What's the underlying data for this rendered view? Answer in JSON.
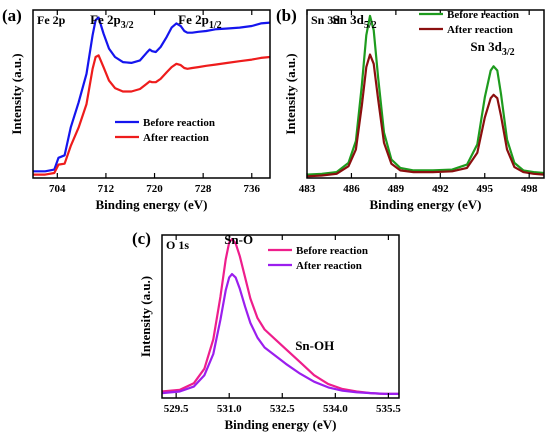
{
  "chart_data": [
    {
      "type": "line",
      "panel_tag": "(a)",
      "core_label": "Fe 2p",
      "peak_labels": [
        {
          "main": "Fe 2p",
          "sub": "3/2",
          "x": 711
        },
        {
          "main": "Fe 2p",
          "sub": "1/2",
          "x": 724.5
        }
      ],
      "xlabel": "Binding energy (eV)",
      "ylabel": "Intensity (a.u.)",
      "xlim": [
        700,
        739
      ],
      "xticks": [
        704,
        712,
        720,
        728,
        736
      ],
      "ylim": [
        0,
        1
      ],
      "legend_position": "lower-right",
      "series": [
        {
          "name": "Before reaction",
          "color": "#1515ee",
          "x": [
            700,
            702,
            703.5,
            704.2,
            705.2,
            706.2,
            707.5,
            708.8,
            709.8,
            710.3,
            710.8,
            711.6,
            712.5,
            713.5,
            714.8,
            716.2,
            717.6,
            718.7,
            719.2,
            719.6,
            720.2,
            721,
            722,
            722.8,
            723.6,
            724.3,
            724.9,
            725.4,
            726.2,
            727.2,
            728.5,
            730,
            732,
            734,
            736,
            737.5,
            739
          ],
          "y": [
            0.04,
            0.04,
            0.05,
            0.12,
            0.135,
            0.3,
            0.45,
            0.62,
            0.85,
            0.94,
            0.955,
            0.86,
            0.77,
            0.72,
            0.69,
            0.685,
            0.7,
            0.745,
            0.765,
            0.755,
            0.75,
            0.78,
            0.84,
            0.895,
            0.92,
            0.905,
            0.875,
            0.865,
            0.865,
            0.87,
            0.875,
            0.885,
            0.89,
            0.895,
            0.905,
            0.92,
            0.925
          ]
        },
        {
          "name": "After reaction",
          "color": "#ee1c1c",
          "x": [
            700,
            702,
            703.5,
            704.2,
            705.2,
            706.2,
            707.5,
            708.8,
            709.8,
            710.3,
            710.8,
            711.6,
            712.5,
            713.5,
            714.8,
            716.2,
            717.6,
            718.7,
            719.2,
            719.6,
            720.2,
            721,
            722,
            722.8,
            723.6,
            724.3,
            724.9,
            725.4,
            726.2,
            727.2,
            728.5,
            730,
            732,
            734,
            736,
            737.5,
            739
          ],
          "y": [
            0.02,
            0.02,
            0.03,
            0.08,
            0.085,
            0.19,
            0.3,
            0.44,
            0.65,
            0.72,
            0.73,
            0.66,
            0.58,
            0.535,
            0.515,
            0.515,
            0.53,
            0.56,
            0.575,
            0.57,
            0.57,
            0.59,
            0.63,
            0.66,
            0.68,
            0.672,
            0.655,
            0.65,
            0.655,
            0.66,
            0.668,
            0.675,
            0.685,
            0.695,
            0.705,
            0.715,
            0.72
          ]
        }
      ]
    },
    {
      "type": "line",
      "panel_tag": "(b)",
      "core_label": "Sn 3d",
      "peak_labels": [
        {
          "main": "Sn 3d",
          "sub": "5/2",
          "x": 488.1
        },
        {
          "main": "Sn 3d",
          "sub": "3/2",
          "x": 496.2
        }
      ],
      "xlabel": "Binding energy (eV)",
      "ylabel": "Intensity (a.u.)",
      "xlim": [
        483,
        499
      ],
      "xticks": [
        483,
        486,
        489,
        492,
        495,
        498
      ],
      "ylim": [
        0,
        1
      ],
      "legend_position": "top-right",
      "series": [
        {
          "name": "Before reaction",
          "color": "#1e9b1e",
          "x": [
            483,
            484,
            485,
            485.8,
            486.3,
            486.7,
            487.0,
            487.25,
            487.5,
            487.8,
            488.2,
            488.7,
            489.3,
            490.2,
            491.5,
            492.8,
            493.8,
            494.5,
            495.0,
            495.4,
            495.6,
            495.85,
            496.1,
            496.5,
            497.0,
            497.6,
            498.3,
            499
          ],
          "y": [
            0.02,
            0.025,
            0.035,
            0.09,
            0.22,
            0.55,
            0.85,
            0.965,
            0.88,
            0.6,
            0.27,
            0.11,
            0.06,
            0.045,
            0.045,
            0.05,
            0.08,
            0.2,
            0.48,
            0.64,
            0.665,
            0.64,
            0.5,
            0.23,
            0.09,
            0.045,
            0.035,
            0.03
          ]
        },
        {
          "name": "After reaction",
          "color": "#8b0f0f",
          "x": [
            483,
            484,
            485,
            485.8,
            486.3,
            486.7,
            487.0,
            487.25,
            487.5,
            487.8,
            488.2,
            488.7,
            489.3,
            490.2,
            491.5,
            492.8,
            493.8,
            494.5,
            495.0,
            495.4,
            495.6,
            495.85,
            496.1,
            496.5,
            497.0,
            497.6,
            498.3,
            499
          ],
          "y": [
            0.01,
            0.015,
            0.025,
            0.07,
            0.17,
            0.43,
            0.66,
            0.735,
            0.68,
            0.47,
            0.21,
            0.085,
            0.045,
            0.035,
            0.035,
            0.04,
            0.06,
            0.15,
            0.36,
            0.475,
            0.495,
            0.475,
            0.37,
            0.17,
            0.065,
            0.035,
            0.025,
            0.02
          ]
        }
      ]
    },
    {
      "type": "line",
      "panel_tag": "(c)",
      "core_label": "O 1s",
      "peak_labels": [
        {
          "main": "Sn-O",
          "sub": "",
          "x": 531.55
        },
        {
          "main": "Sn-OH",
          "sub": "",
          "x": 533.05
        }
      ],
      "xlabel": "Binding energy (eV)",
      "ylabel": "Intensity (a.u.)",
      "xlim": [
        529.1,
        535.8
      ],
      "xticks": [
        529.5,
        531.0,
        532.5,
        534.0,
        535.5
      ],
      "ylim": [
        0,
        1
      ],
      "legend_position": "top-right",
      "series": [
        {
          "name": "Before reaction",
          "color": "#ee1e8c",
          "x": [
            529.1,
            529.6,
            530.0,
            530.3,
            530.55,
            530.75,
            530.9,
            531.0,
            531.08,
            531.18,
            531.3,
            531.45,
            531.6,
            531.8,
            532.0,
            532.3,
            532.6,
            533.0,
            533.4,
            533.8,
            534.2,
            534.6,
            535.0,
            535.4,
            535.8
          ],
          "y": [
            0.04,
            0.05,
            0.09,
            0.18,
            0.36,
            0.62,
            0.85,
            0.955,
            0.975,
            0.95,
            0.87,
            0.74,
            0.61,
            0.49,
            0.42,
            0.36,
            0.3,
            0.22,
            0.14,
            0.085,
            0.055,
            0.04,
            0.03,
            0.025,
            0.025
          ]
        },
        {
          "name": "After reaction",
          "color": "#9b1eee",
          "x": [
            529.1,
            529.6,
            530.0,
            530.3,
            530.55,
            530.75,
            530.9,
            531.0,
            531.08,
            531.18,
            531.3,
            531.45,
            531.6,
            531.8,
            532.0,
            532.3,
            532.6,
            533.0,
            533.4,
            533.8,
            534.2,
            534.6,
            535.0,
            535.4,
            535.8
          ],
          "y": [
            0.03,
            0.04,
            0.07,
            0.14,
            0.27,
            0.48,
            0.66,
            0.74,
            0.76,
            0.74,
            0.67,
            0.56,
            0.46,
            0.37,
            0.31,
            0.26,
            0.21,
            0.15,
            0.1,
            0.065,
            0.045,
            0.035,
            0.03,
            0.025,
            0.025
          ]
        }
      ]
    }
  ]
}
